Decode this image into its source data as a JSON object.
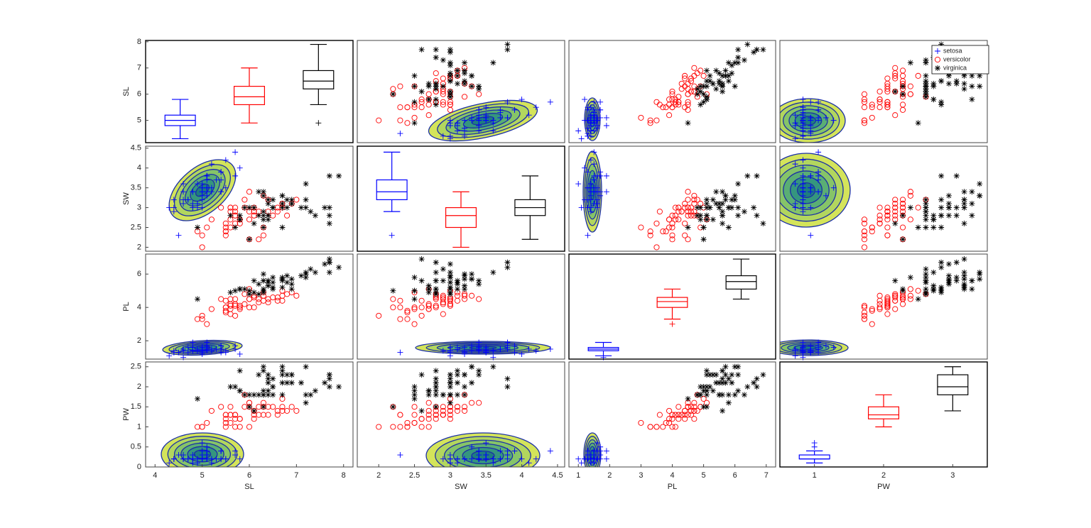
{
  "chart_data": {
    "type": "scatter_matrix",
    "legend": "northeast",
    "box_xlim": [
      0.5,
      3.5
    ],
    "box_xticks": [
      1,
      2,
      3
    ],
    "variables": [
      {
        "name": "SL",
        "xlim": [
          3.8,
          8.2
        ],
        "xticks": [
          4,
          5,
          6,
          7,
          8
        ],
        "ylim": [
          4.15,
          8.05
        ],
        "yticks": [
          5,
          6,
          7,
          8
        ],
        "boxes": [
          {
            "q1": 4.8,
            "median": 5.0,
            "q3": 5.2,
            "whisker_low": 4.3,
            "whisker_high": 5.8
          },
          {
            "q1": 5.6,
            "median": 5.9,
            "q3": 6.3,
            "whisker_low": 4.9,
            "whisker_high": 7.0
          },
          {
            "q1": 6.2,
            "median": 6.5,
            "q3": 6.9,
            "whisker_low": 5.6,
            "whisker_high": 7.9,
            "outliers": [
              4.9
            ]
          }
        ]
      },
      {
        "name": "SW",
        "xlim": [
          1.7,
          4.6
        ],
        "xticks": [
          2,
          2.5,
          3,
          3.5,
          4,
          4.5
        ],
        "ylim": [
          1.9,
          4.55
        ],
        "yticks": [
          2,
          2.5,
          3,
          3.5,
          4,
          4.5
        ],
        "boxes": [
          {
            "q1": 3.2,
            "median": 3.4,
            "q3": 3.7,
            "whisker_low": 2.9,
            "whisker_high": 4.4,
            "outliers": [
              2.3
            ]
          },
          {
            "q1": 2.5,
            "median": 2.8,
            "q3": 3.0,
            "whisker_low": 2.0,
            "whisker_high": 3.4
          },
          {
            "q1": 2.8,
            "median": 3.0,
            "q3": 3.2,
            "whisker_low": 2.2,
            "whisker_high": 3.8
          }
        ]
      },
      {
        "name": "PL",
        "xlim": [
          0.7,
          7.3
        ],
        "xticks": [
          1,
          2,
          3,
          4,
          5,
          6,
          7
        ],
        "ylim": [
          0.9,
          7.2
        ],
        "yticks": [
          2,
          4,
          6
        ],
        "boxes": [
          {
            "q1": 1.4,
            "median": 1.5,
            "q3": 1.6,
            "whisker_low": 1.1,
            "whisker_high": 1.9,
            "outliers": [
              1.0
            ]
          },
          {
            "q1": 4.0,
            "median": 4.35,
            "q3": 4.6,
            "whisker_low": 3.3,
            "whisker_high": 5.1,
            "outliers": [
              3.0
            ]
          },
          {
            "q1": 5.1,
            "median": 5.55,
            "q3": 5.9,
            "whisker_low": 4.5,
            "whisker_high": 6.9
          }
        ]
      },
      {
        "name": "PW",
        "xlim": [
          -0.1,
          2.6
        ],
        "ylim": [
          0,
          2.62
        ],
        "yticks": [
          0,
          0.5,
          1,
          1.5,
          2,
          2.5
        ],
        "boxes": [
          {
            "q1": 0.2,
            "median": 0.2,
            "q3": 0.3,
            "whisker_low": 0.1,
            "whisker_high": 0.4,
            "outliers": [
              0.5,
              0.6
            ]
          },
          {
            "q1": 1.2,
            "median": 1.3,
            "q3": 1.5,
            "whisker_low": 1.0,
            "whisker_high": 1.8
          },
          {
            "q1": 1.8,
            "median": 2.0,
            "q3": 2.3,
            "whisker_low": 1.4,
            "whisker_high": 2.5
          }
        ]
      }
    ],
    "series": [
      {
        "name": "setosa",
        "color": "#0000ff",
        "marker": "plus",
        "values": [
          [
            5.1,
            3.5,
            1.4,
            0.2
          ],
          [
            4.9,
            3.0,
            1.4,
            0.2
          ],
          [
            4.7,
            3.2,
            1.3,
            0.2
          ],
          [
            4.6,
            3.1,
            1.5,
            0.2
          ],
          [
            5.0,
            3.6,
            1.4,
            0.2
          ],
          [
            5.4,
            3.9,
            1.7,
            0.4
          ],
          [
            4.6,
            3.4,
            1.4,
            0.3
          ],
          [
            5.0,
            3.4,
            1.5,
            0.2
          ],
          [
            4.4,
            2.9,
            1.4,
            0.2
          ],
          [
            4.9,
            3.1,
            1.5,
            0.1
          ],
          [
            5.4,
            3.7,
            1.5,
            0.2
          ],
          [
            4.8,
            3.4,
            1.6,
            0.2
          ],
          [
            4.8,
            3.0,
            1.4,
            0.1
          ],
          [
            4.3,
            3.0,
            1.1,
            0.1
          ],
          [
            5.8,
            4.0,
            1.2,
            0.2
          ],
          [
            5.7,
            4.4,
            1.5,
            0.4
          ],
          [
            5.4,
            3.9,
            1.3,
            0.4
          ],
          [
            5.1,
            3.5,
            1.4,
            0.3
          ],
          [
            5.7,
            3.8,
            1.7,
            0.3
          ],
          [
            5.1,
            3.8,
            1.5,
            0.3
          ],
          [
            5.4,
            3.4,
            1.7,
            0.2
          ],
          [
            5.1,
            3.7,
            1.5,
            0.4
          ],
          [
            4.6,
            3.6,
            1.0,
            0.2
          ],
          [
            5.1,
            3.3,
            1.7,
            0.5
          ],
          [
            4.8,
            3.4,
            1.9,
            0.2
          ],
          [
            5.0,
            3.0,
            1.6,
            0.2
          ],
          [
            5.0,
            3.4,
            1.6,
            0.4
          ],
          [
            5.2,
            3.5,
            1.5,
            0.2
          ],
          [
            5.2,
            3.4,
            1.4,
            0.2
          ],
          [
            4.7,
            3.2,
            1.6,
            0.2
          ],
          [
            4.8,
            3.1,
            1.6,
            0.2
          ],
          [
            5.4,
            3.4,
            1.5,
            0.4
          ],
          [
            5.2,
            4.1,
            1.5,
            0.1
          ],
          [
            5.5,
            4.2,
            1.4,
            0.2
          ],
          [
            4.9,
            3.1,
            1.5,
            0.2
          ],
          [
            5.0,
            3.2,
            1.2,
            0.2
          ],
          [
            5.5,
            3.5,
            1.3,
            0.2
          ],
          [
            4.9,
            3.6,
            1.4,
            0.1
          ],
          [
            4.4,
            3.0,
            1.3,
            0.2
          ],
          [
            5.1,
            3.4,
            1.5,
            0.2
          ],
          [
            5.0,
            3.5,
            1.3,
            0.3
          ],
          [
            4.5,
            2.3,
            1.3,
            0.3
          ],
          [
            4.4,
            3.2,
            1.3,
            0.2
          ],
          [
            5.0,
            3.5,
            1.6,
            0.6
          ],
          [
            5.1,
            3.8,
            1.9,
            0.4
          ],
          [
            4.8,
            3.0,
            1.4,
            0.3
          ],
          [
            5.1,
            3.8,
            1.6,
            0.2
          ],
          [
            4.6,
            3.2,
            1.4,
            0.2
          ],
          [
            5.3,
            3.7,
            1.5,
            0.2
          ],
          [
            5.0,
            3.3,
            1.4,
            0.2
          ]
        ]
      },
      {
        "name": "versicolor",
        "color": "#ff0000",
        "marker": "circle",
        "values": [
          [
            7.0,
            3.2,
            4.7,
            1.4
          ],
          [
            6.4,
            3.2,
            4.5,
            1.5
          ],
          [
            6.9,
            3.1,
            4.9,
            1.5
          ],
          [
            5.5,
            2.3,
            4.0,
            1.3
          ],
          [
            6.5,
            2.8,
            4.6,
            1.5
          ],
          [
            5.7,
            2.8,
            4.5,
            1.3
          ],
          [
            6.3,
            3.3,
            4.7,
            1.6
          ],
          [
            4.9,
            2.4,
            3.3,
            1.0
          ],
          [
            6.6,
            2.9,
            4.6,
            1.3
          ],
          [
            5.2,
            2.7,
            3.9,
            1.4
          ],
          [
            5.0,
            2.0,
            3.5,
            1.0
          ],
          [
            5.9,
            3.0,
            4.2,
            1.5
          ],
          [
            6.0,
            2.2,
            4.0,
            1.0
          ],
          [
            6.1,
            2.9,
            4.7,
            1.4
          ],
          [
            5.6,
            2.9,
            3.6,
            1.3
          ],
          [
            6.7,
            3.1,
            4.4,
            1.4
          ],
          [
            5.6,
            3.0,
            4.5,
            1.5
          ],
          [
            5.8,
            2.7,
            4.1,
            1.0
          ],
          [
            6.2,
            2.2,
            4.5,
            1.5
          ],
          [
            5.6,
            2.5,
            3.9,
            1.1
          ],
          [
            5.9,
            3.2,
            4.8,
            1.8
          ],
          [
            6.1,
            2.8,
            4.0,
            1.3
          ],
          [
            6.3,
            2.5,
            4.9,
            1.5
          ],
          [
            6.1,
            2.8,
            4.7,
            1.2
          ],
          [
            6.4,
            2.9,
            4.3,
            1.3
          ],
          [
            6.6,
            3.0,
            4.4,
            1.4
          ],
          [
            6.8,
            2.8,
            4.8,
            1.4
          ],
          [
            6.7,
            3.0,
            5.0,
            1.7
          ],
          [
            6.0,
            2.9,
            4.5,
            1.5
          ],
          [
            5.7,
            2.6,
            3.5,
            1.0
          ],
          [
            5.5,
            2.4,
            3.8,
            1.1
          ],
          [
            5.5,
            2.4,
            3.7,
            1.0
          ],
          [
            5.8,
            2.7,
            3.9,
            1.2
          ],
          [
            6.0,
            2.7,
            5.1,
            1.6
          ],
          [
            5.4,
            3.0,
            4.5,
            1.5
          ],
          [
            6.0,
            3.4,
            4.5,
            1.6
          ],
          [
            6.7,
            3.1,
            4.7,
            1.5
          ],
          [
            6.3,
            2.3,
            4.4,
            1.3
          ],
          [
            5.6,
            3.0,
            4.1,
            1.3
          ],
          [
            5.5,
            2.5,
            4.0,
            1.3
          ],
          [
            5.5,
            2.6,
            4.4,
            1.2
          ],
          [
            6.1,
            3.0,
            4.6,
            1.4
          ],
          [
            5.8,
            2.6,
            4.0,
            1.2
          ],
          [
            5.0,
            2.3,
            3.3,
            1.0
          ],
          [
            5.6,
            2.7,
            4.2,
            1.3
          ],
          [
            5.7,
            3.0,
            4.2,
            1.2
          ],
          [
            5.7,
            2.9,
            4.2,
            1.3
          ],
          [
            6.2,
            2.9,
            4.3,
            1.3
          ],
          [
            5.1,
            2.5,
            3.0,
            1.1
          ],
          [
            5.7,
            2.8,
            4.1,
            1.3
          ]
        ]
      },
      {
        "name": "virginica",
        "color": "#000000",
        "marker": "star",
        "values": [
          [
            6.3,
            3.3,
            6.0,
            2.5
          ],
          [
            5.8,
            2.7,
            5.1,
            1.9
          ],
          [
            7.1,
            3.0,
            5.9,
            2.1
          ],
          [
            6.3,
            2.9,
            5.6,
            1.8
          ],
          [
            6.5,
            3.0,
            5.8,
            2.2
          ],
          [
            7.6,
            3.0,
            6.6,
            2.1
          ],
          [
            4.9,
            2.5,
            4.5,
            1.7
          ],
          [
            7.3,
            2.9,
            6.3,
            1.8
          ],
          [
            6.7,
            2.5,
            5.8,
            1.8
          ],
          [
            7.2,
            3.6,
            6.1,
            2.5
          ],
          [
            6.5,
            3.2,
            5.1,
            2.0
          ],
          [
            6.4,
            2.7,
            5.3,
            1.9
          ],
          [
            6.8,
            3.0,
            5.5,
            2.1
          ],
          [
            5.7,
            2.5,
            5.0,
            2.0
          ],
          [
            5.8,
            2.8,
            5.1,
            2.4
          ],
          [
            6.4,
            3.2,
            5.3,
            2.3
          ],
          [
            6.5,
            3.0,
            5.5,
            1.8
          ],
          [
            7.7,
            3.8,
            6.7,
            2.2
          ],
          [
            7.7,
            2.6,
            6.9,
            2.3
          ],
          [
            6.0,
            2.2,
            5.0,
            1.5
          ],
          [
            6.9,
            3.2,
            5.7,
            2.3
          ],
          [
            5.6,
            2.8,
            4.9,
            2.0
          ],
          [
            7.7,
            2.8,
            6.7,
            2.0
          ],
          [
            6.3,
            2.7,
            4.9,
            1.8
          ],
          [
            6.7,
            3.3,
            5.7,
            2.1
          ],
          [
            7.2,
            3.2,
            6.0,
            1.8
          ],
          [
            6.2,
            2.8,
            4.8,
            1.8
          ],
          [
            6.1,
            3.0,
            4.9,
            1.8
          ],
          [
            6.4,
            2.8,
            5.6,
            2.1
          ],
          [
            7.2,
            3.0,
            5.8,
            1.6
          ],
          [
            7.4,
            2.8,
            6.1,
            1.9
          ],
          [
            7.9,
            3.8,
            6.4,
            2.0
          ],
          [
            6.4,
            2.8,
            5.6,
            2.2
          ],
          [
            6.3,
            2.8,
            5.1,
            1.5
          ],
          [
            6.1,
            2.6,
            5.6,
            1.4
          ],
          [
            7.7,
            3.0,
            6.1,
            2.3
          ],
          [
            6.3,
            3.4,
            5.6,
            2.4
          ],
          [
            6.4,
            3.1,
            5.5,
            1.8
          ],
          [
            6.0,
            3.0,
            4.8,
            1.8
          ],
          [
            6.9,
            3.1,
            5.4,
            2.1
          ],
          [
            6.7,
            3.1,
            5.6,
            2.4
          ],
          [
            6.9,
            3.1,
            5.1,
            2.3
          ],
          [
            5.8,
            2.7,
            5.1,
            1.9
          ],
          [
            6.8,
            3.2,
            5.9,
            2.3
          ],
          [
            6.7,
            3.3,
            5.7,
            2.5
          ],
          [
            6.7,
            3.0,
            5.2,
            2.3
          ],
          [
            6.3,
            2.5,
            5.0,
            1.9
          ],
          [
            6.5,
            3.0,
            5.2,
            2.0
          ],
          [
            6.2,
            3.4,
            5.4,
            2.3
          ],
          [
            5.9,
            3.0,
            5.1,
            1.8
          ]
        ]
      }
    ]
  }
}
